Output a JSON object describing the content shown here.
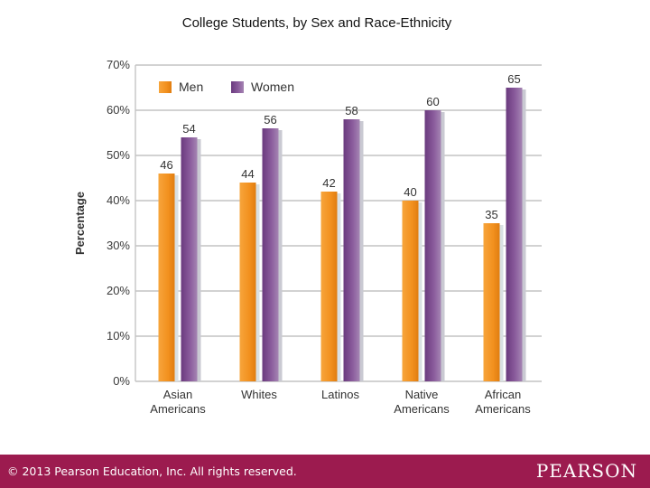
{
  "slide": {
    "title": "College Students, by Sex and Race-Ethnicity"
  },
  "footer": {
    "copyright": "© 2013  Pearson Education, Inc. All rights reserved.",
    "brand": "PEARSON",
    "background_color": "#9c1b4f"
  },
  "chart_data": {
    "type": "bar",
    "title": "",
    "xlabel": "",
    "ylabel": "Percentage",
    "ylim": [
      0,
      70
    ],
    "yticks": [
      "0%",
      "10%",
      "20%",
      "30%",
      "40%",
      "50%",
      "60%",
      "70%"
    ],
    "ytick_values": [
      0,
      10,
      20,
      30,
      40,
      50,
      60,
      70
    ],
    "grid": true,
    "legend": "top-left",
    "categories": [
      [
        "Asian",
        "Americans"
      ],
      [
        "Whites"
      ],
      [
        "Latinos"
      ],
      [
        "Native",
        "Americans"
      ],
      [
        "African",
        "Americans"
      ]
    ],
    "series": [
      {
        "name": "Men",
        "values": [
          46,
          44,
          42,
          40,
          35
        ],
        "color": "#f2901e"
      },
      {
        "name": "Women",
        "values": [
          54,
          56,
          58,
          60,
          65
        ],
        "color": "#7b4a8b"
      }
    ]
  }
}
